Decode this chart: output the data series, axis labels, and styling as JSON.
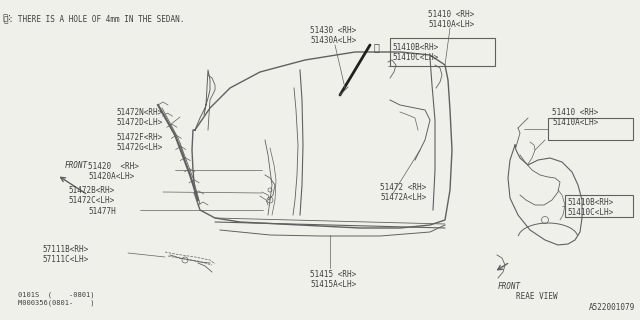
{
  "bg_color": "#f0f0eb",
  "line_color": "#606060",
  "text_color": "#404040",
  "title_note": "※: THERE IS A HOLE OF 4mm IN THE SEDAN.",
  "diagram_id": "A522001079",
  "bottom_codes": "0101S  (    -0801)\nM000356(0801-    )",
  "figsize": [
    6.4,
    3.2
  ],
  "dpi": 100
}
